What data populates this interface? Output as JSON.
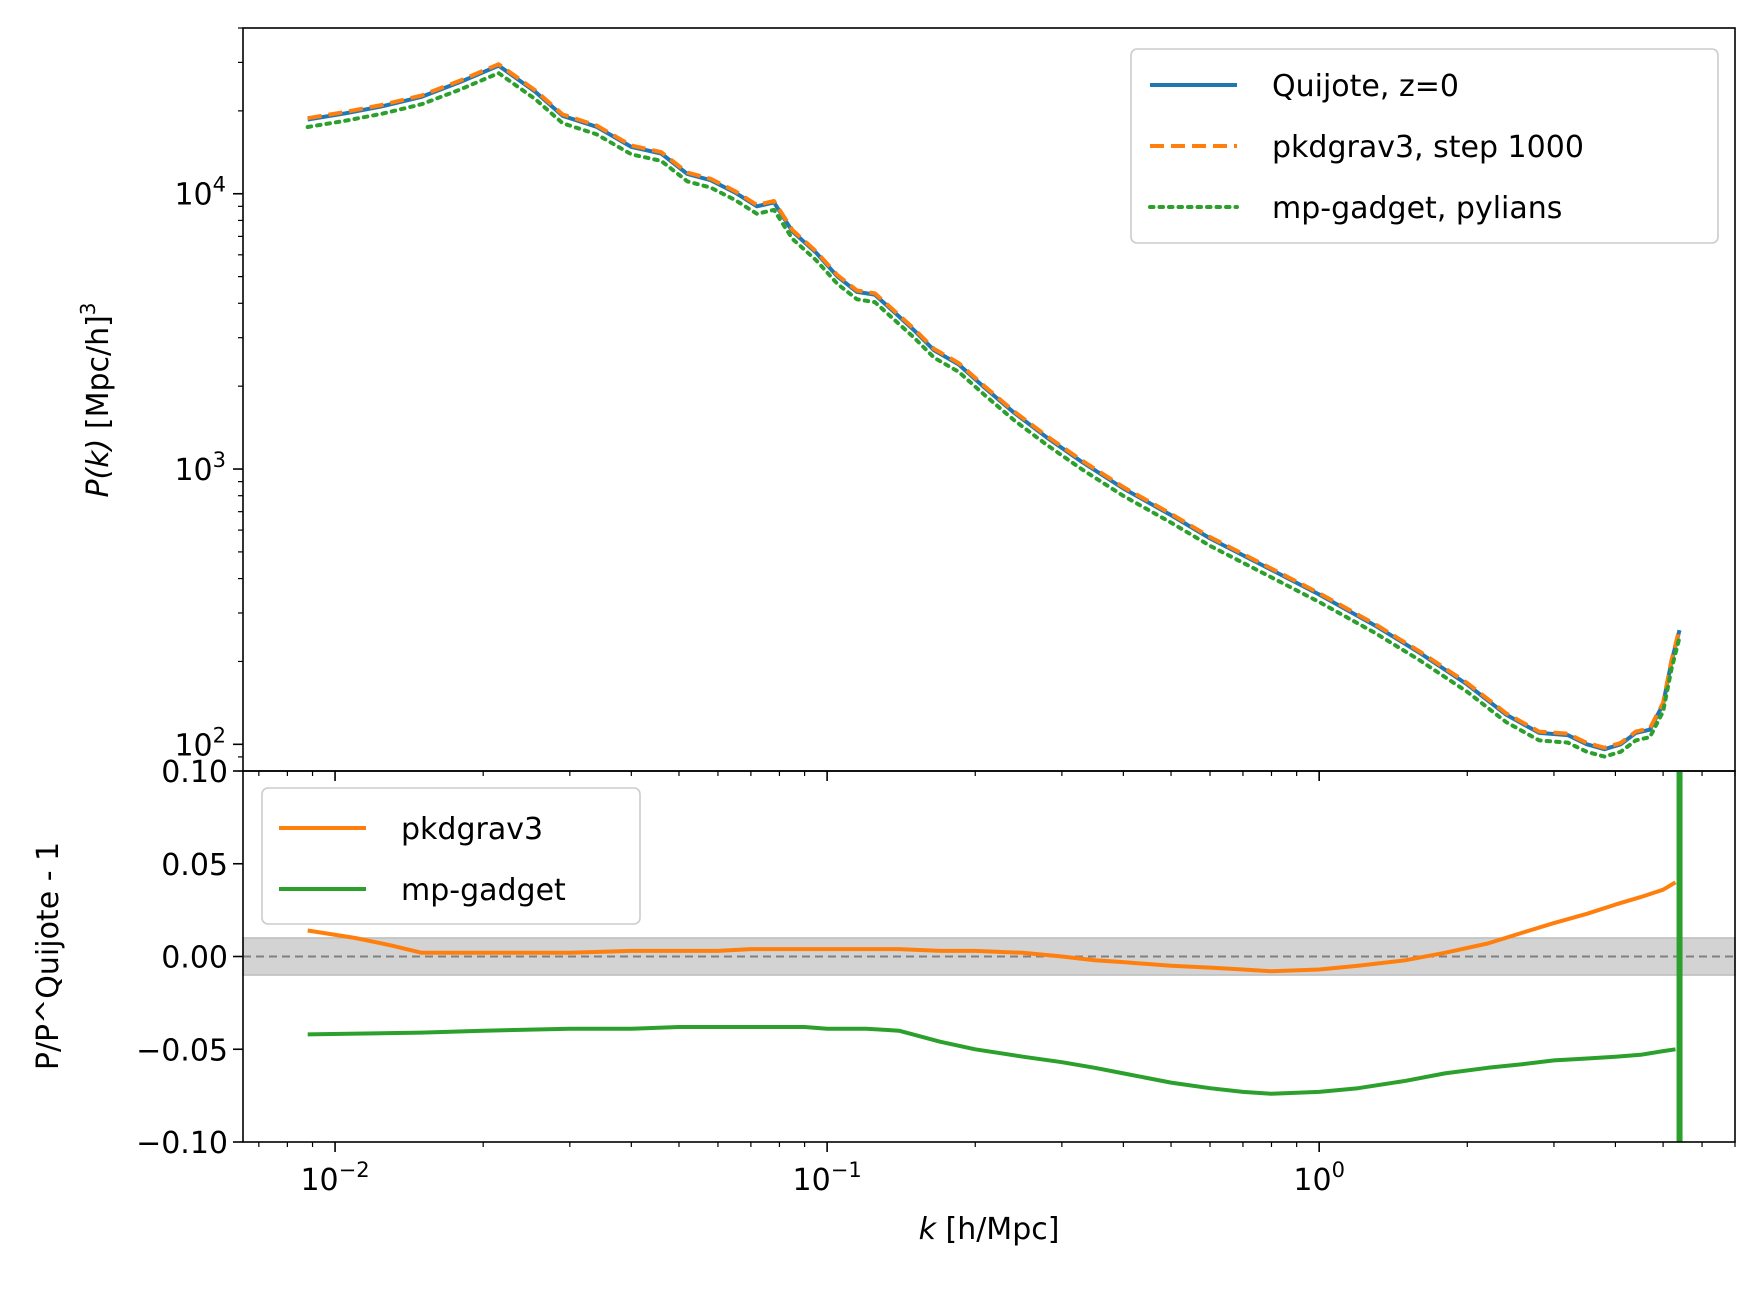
{
  "chart_data": [
    {
      "type": "line",
      "panel": "top",
      "x_scale": "log",
      "y_scale": "log",
      "ylabel_main": "P(k)",
      "ylabel_unit": "[Mpc/h]",
      "ylabel_exp": "3",
      "xlim": [
        0.0065,
        7.0
      ],
      "ylim": [
        80,
        40000
      ],
      "x_major_ticks": [
        0.01,
        0.1,
        1
      ],
      "y_major_ticks": [
        {
          "value": 100,
          "base": "10",
          "exp": "2"
        },
        {
          "value": 1000,
          "base": "10",
          "exp": "3"
        },
        {
          "value": 10000,
          "base": "10",
          "exp": "4"
        }
      ],
      "legend_position": "upper right",
      "series": [
        {
          "name": "Quijote, z=0",
          "style": "solid",
          "color": "#1f77b4",
          "dy": 0.0
        },
        {
          "name": "pkdgrav3, step 1000",
          "style": "dashed",
          "color": "#ff7f0e",
          "dy": 0.005
        },
        {
          "name": "mp-gadget, pylians",
          "style": "dotted",
          "color": "#2ca02c",
          "dy": -0.027
        }
      ],
      "x": [
        0.0088,
        0.0105,
        0.0125,
        0.015,
        0.018,
        0.0215,
        0.0255,
        0.029,
        0.034,
        0.04,
        0.046,
        0.052,
        0.058,
        0.065,
        0.072,
        0.078,
        0.085,
        0.095,
        0.105,
        0.115,
        0.125,
        0.135,
        0.15,
        0.165,
        0.185,
        0.21,
        0.24,
        0.28,
        0.33,
        0.4,
        0.5,
        0.6,
        0.8,
        1.0,
        1.3,
        1.6,
        2.0,
        2.4,
        2.8,
        3.2,
        3.5,
        3.8,
        4.1,
        4.4,
        4.7,
        5.0,
        5.2,
        5.4
      ],
      "y": [
        18600,
        19600,
        20800,
        22500,
        25500,
        29200,
        23500,
        19200,
        17500,
        14800,
        14000,
        11800,
        11200,
        10100,
        9000,
        9300,
        7300,
        6100,
        5000,
        4400,
        4300,
        3800,
        3200,
        2700,
        2400,
        1960,
        1600,
        1300,
        1060,
        850,
        680,
        560,
        430,
        350,
        270,
        215,
        165,
        128,
        110,
        108,
        100,
        96,
        100,
        110,
        113,
        140,
        200,
        260
      ]
    },
    {
      "type": "line",
      "panel": "bottom",
      "x_scale": "log",
      "y_scale": "linear",
      "xlabel_main": "k",
      "xlabel_unit": "[h/Mpc]",
      "ylabel": "P/P^Quijote - 1",
      "xlim": [
        0.0065,
        7.0
      ],
      "ylim": [
        -0.1,
        0.1
      ],
      "y_ticks": [
        {
          "value": 0.1,
          "label": "0.10"
        },
        {
          "value": 0.05,
          "label": "0.05"
        },
        {
          "value": 0.0,
          "label": "0.00"
        },
        {
          "value": -0.05,
          "label": "−0.05"
        },
        {
          "value": -0.1,
          "label": "−0.10"
        }
      ],
      "x_ticks": [
        {
          "value": 0.01,
          "base": "10",
          "exp": "−2"
        },
        {
          "value": 0.1,
          "base": "10",
          "exp": "−1"
        },
        {
          "value": 1,
          "base": "10",
          "exp": "0"
        }
      ],
      "reference_line": 0.0,
      "band": [
        -0.01,
        0.01
      ],
      "legend_position": "upper left",
      "series": [
        {
          "name": "pkdgrav3",
          "color": "#ff7f0e",
          "x": [
            0.0088,
            0.011,
            0.013,
            0.015,
            0.02,
            0.03,
            0.04,
            0.05,
            0.06,
            0.07,
            0.08,
            0.09,
            0.1,
            0.12,
            0.14,
            0.17,
            0.2,
            0.25,
            0.3,
            0.35,
            0.4,
            0.5,
            0.6,
            0.7,
            0.8,
            1.0,
            1.2,
            1.5,
            1.8,
            2.2,
            2.6,
            3.0,
            3.5,
            4.0,
            4.5,
            5.0,
            5.3
          ],
          "y": [
            0.014,
            0.01,
            0.006,
            0.002,
            0.002,
            0.002,
            0.003,
            0.003,
            0.003,
            0.004,
            0.004,
            0.004,
            0.004,
            0.004,
            0.004,
            0.003,
            0.003,
            0.002,
            0.0,
            -0.002,
            -0.003,
            -0.005,
            -0.006,
            -0.007,
            -0.008,
            -0.007,
            -0.005,
            -0.002,
            0.002,
            0.007,
            0.013,
            0.018,
            0.023,
            0.028,
            0.032,
            0.036,
            0.04
          ]
        },
        {
          "name": "mp-gadget",
          "color": "#2ca02c",
          "x": [
            0.0088,
            0.015,
            0.02,
            0.03,
            0.04,
            0.05,
            0.06,
            0.07,
            0.08,
            0.09,
            0.1,
            0.12,
            0.14,
            0.17,
            0.2,
            0.25,
            0.3,
            0.35,
            0.4,
            0.5,
            0.6,
            0.7,
            0.8,
            1.0,
            1.2,
            1.5,
            1.8,
            2.2,
            2.6,
            3.0,
            3.5,
            4.0,
            4.5,
            5.0,
            5.3
          ],
          "y": [
            -0.042,
            -0.041,
            -0.04,
            -0.039,
            -0.039,
            -0.038,
            -0.038,
            -0.038,
            -0.038,
            -0.038,
            -0.039,
            -0.039,
            -0.04,
            -0.046,
            -0.05,
            -0.054,
            -0.057,
            -0.06,
            -0.063,
            -0.068,
            -0.071,
            -0.073,
            -0.074,
            -0.073,
            -0.071,
            -0.067,
            -0.063,
            -0.06,
            -0.058,
            -0.056,
            -0.055,
            -0.054,
            -0.053,
            -0.051,
            -0.05
          ]
        }
      ]
    }
  ]
}
